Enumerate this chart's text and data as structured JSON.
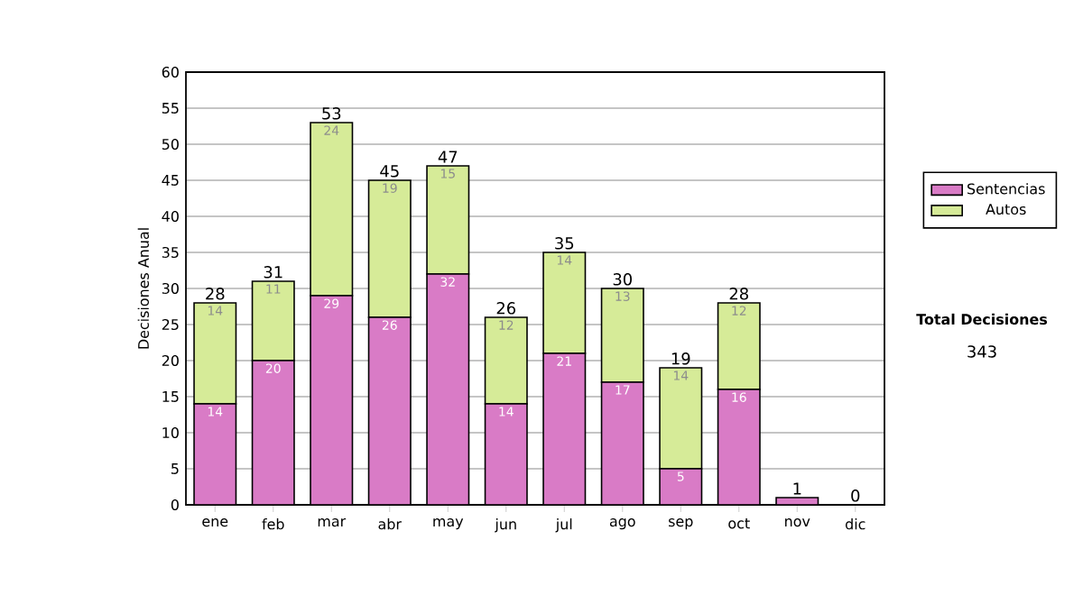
{
  "chart_data": {
    "type": "bar",
    "stacked": true,
    "ylabel": "Decisiones Anual",
    "categories": [
      "ene",
      "feb",
      "mar",
      "abr",
      "may",
      "jun",
      "jul",
      "ago",
      "sep",
      "oct",
      "nov",
      "dic"
    ],
    "series": [
      {
        "name": "Sentencias",
        "color": "#d97bc6",
        "values": [
          14,
          20,
          29,
          26,
          32,
          14,
          21,
          17,
          5,
          16,
          1,
          0
        ],
        "value_labels": [
          "14",
          "20",
          "29",
          "26",
          "32",
          "14",
          "21",
          "17",
          "5",
          "16",
          null,
          null
        ]
      },
      {
        "name": "Autos",
        "color": "#d6eb98",
        "values": [
          14,
          11,
          24,
          19,
          15,
          12,
          14,
          13,
          14,
          12,
          0,
          0
        ],
        "value_labels": [
          "14",
          "11",
          "24",
          "19",
          "15",
          "12",
          "14",
          "13",
          "14",
          "12",
          null,
          null
        ]
      }
    ],
    "totals": [
      "28",
      "31",
      "53",
      "45",
      "47",
      "26",
      "35",
      "30",
      "19",
      "28",
      "1",
      "0"
    ],
    "ylim": [
      0,
      60
    ],
    "yticks": [
      0,
      5,
      10,
      15,
      20,
      25,
      30,
      35,
      40,
      45,
      50,
      55,
      60
    ],
    "grid": "y",
    "legend": "right",
    "annotations": [
      "Total Decisiones",
      "343"
    ]
  }
}
